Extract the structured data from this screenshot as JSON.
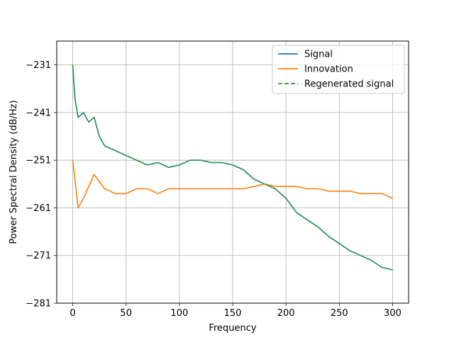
{
  "chart_data": {
    "type": "line",
    "title": "",
    "xlabel": "Frequency",
    "ylabel": "Power Spectral Density (dB/Hz)",
    "xlim": [
      -15,
      315
    ],
    "ylim": [
      -281,
      -226
    ],
    "x_ticks": [
      0,
      50,
      100,
      150,
      200,
      250,
      300
    ],
    "x_tick_labels": [
      "0",
      "50",
      "100",
      "150",
      "200",
      "250",
      "300"
    ],
    "y_ticks": [
      -231,
      -241,
      -251,
      -261,
      -271,
      -281
    ],
    "y_tick_labels": [
      "−231",
      "−241",
      "−251",
      "−261",
      "−271",
      "−281"
    ],
    "grid": true,
    "legend_position": "top-right",
    "series": [
      {
        "name": "Signal",
        "color": "#1f77b4",
        "style": "solid",
        "x": [
          0,
          2,
          5,
          10,
          15,
          20,
          25,
          30,
          40,
          50,
          60,
          70,
          80,
          90,
          100,
          110,
          120,
          130,
          140,
          150,
          160,
          170,
          180,
          190,
          200,
          210,
          220,
          230,
          240,
          250,
          260,
          270,
          280,
          290,
          300
        ],
        "values": [
          -231,
          -238,
          -242,
          -241,
          -243,
          -242,
          -246,
          -248,
          -249,
          -250,
          -251,
          -252,
          -251.5,
          -252.5,
          -252,
          -251,
          -251,
          -251.5,
          -251.5,
          -252,
          -253,
          -255,
          -256,
          -257,
          -259,
          -262,
          -263.5,
          -265,
          -267,
          -268.5,
          -270,
          -271,
          -272,
          -273.5,
          -274
        ]
      },
      {
        "name": "Innovation",
        "color": "#ff7f0e",
        "style": "solid",
        "x": [
          0,
          5,
          10,
          20,
          30,
          40,
          50,
          60,
          70,
          80,
          90,
          100,
          110,
          120,
          130,
          140,
          150,
          160,
          170,
          180,
          190,
          200,
          210,
          220,
          230,
          240,
          250,
          260,
          270,
          280,
          290,
          300
        ],
        "values": [
          -251,
          -261,
          -259,
          -254,
          -257,
          -258,
          -258,
          -257,
          -257,
          -258,
          -257,
          -257,
          -257,
          -257,
          -257,
          -257,
          -257,
          -257,
          -256.5,
          -256,
          -256.5,
          -256.5,
          -256.5,
          -257,
          -257,
          -257.5,
          -257.5,
          -257.5,
          -258,
          -258,
          -258,
          -259
        ]
      },
      {
        "name": "Regenerated signal",
        "color": "#2ca02c",
        "style": "dashed",
        "x": [
          0,
          2,
          5,
          10,
          15,
          20,
          25,
          30,
          40,
          50,
          60,
          70,
          80,
          90,
          100,
          110,
          120,
          130,
          140,
          150,
          160,
          170,
          180,
          190,
          200,
          210,
          220,
          230,
          240,
          250,
          260,
          270,
          280,
          290,
          300
        ],
        "values": [
          -231,
          -238,
          -242,
          -241,
          -243,
          -242,
          -246,
          -248,
          -249,
          -250,
          -251,
          -252,
          -251.5,
          -252.5,
          -252,
          -251,
          -251,
          -251.5,
          -251.5,
          -252,
          -253,
          -255,
          -256,
          -257,
          -259,
          -262,
          -263.5,
          -265,
          -267,
          -268.5,
          -270,
          -271,
          -272,
          -273.5,
          -274
        ]
      }
    ]
  }
}
